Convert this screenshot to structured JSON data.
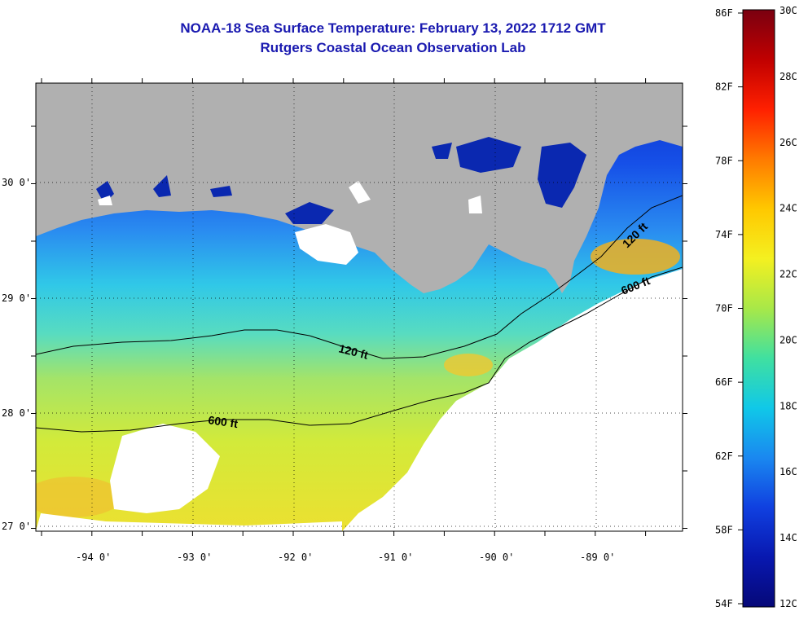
{
  "title": "NOAA-18 Sea Surface Temperature:  February 13, 2022 1712 GMT",
  "subtitle": "Rutgers Coastal Ocean Observation Lab",
  "x_ticks": [
    "-94 0'",
    "-93 0'",
    "-92 0'",
    "-91 0'",
    "-90 0'",
    "-89 0'"
  ],
  "y_ticks": [
    "30 0'",
    "29 0'",
    "28 0'",
    "27 0'"
  ],
  "contours": {
    "label_120": "120 ft",
    "label_600": "600 ft"
  },
  "colorbar": {
    "f_labels": [
      "86F",
      "82F",
      "78F",
      "74F",
      "70F",
      "66F",
      "62F",
      "58F",
      "54F"
    ],
    "c_labels": [
      "30C",
      "28C",
      "26C",
      "24C",
      "22C",
      "20C",
      "18C",
      "16C",
      "14C",
      "12C"
    ],
    "colors": [
      "#7a0010",
      "#c00000",
      "#ff2000",
      "#ff7a00",
      "#ffc800",
      "#f4f020",
      "#a8e848",
      "#40e0a0",
      "#10c8e8",
      "#1a88f0",
      "#1040e0",
      "#0818b0",
      "#060878"
    ]
  },
  "colors": {
    "land": "#b0b0b0",
    "cloud": "#ffffff",
    "title": "#1a1ab0"
  }
}
